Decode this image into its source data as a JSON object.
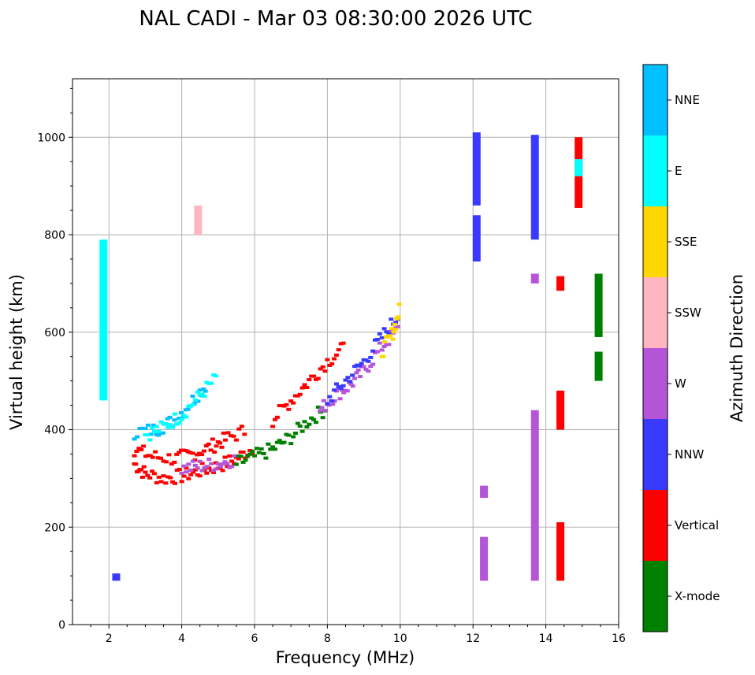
{
  "chart_data": {
    "type": "scatter",
    "title": "NAL CADI - Mar 03 08:30:00 2026 UTC",
    "xlabel": "Frequency (MHz)",
    "ylabel": "Virtual height (km)",
    "xlim": [
      1,
      16
    ],
    "ylim": [
      0,
      1120
    ],
    "xticks": [
      2,
      4,
      6,
      8,
      10,
      12,
      14,
      16
    ],
    "yticks": [
      0,
      200,
      400,
      600,
      800,
      1000
    ],
    "grid": true,
    "colorbar": {
      "label": "Azimuth Direction",
      "categories": [
        {
          "name": "X-mode",
          "color": "#008000"
        },
        {
          "name": "Vertical",
          "color": "#ff0000"
        },
        {
          "name": "NNW",
          "color": "#3a3aff"
        },
        {
          "name": "W",
          "color": "#b455d8"
        },
        {
          "name": "SSW",
          "color": "#ffb6c1"
        },
        {
          "name": "SSE",
          "color": "#ffd700"
        },
        {
          "name": "E",
          "color": "#00ffff"
        },
        {
          "name": "NNE",
          "color": "#00bfff"
        }
      ]
    },
    "segments": [
      {
        "x": 14.4,
        "y0": 685,
        "y1": 715,
        "cat": "Vertical"
      },
      {
        "x": 14.4,
        "y0": 90,
        "y1": 210,
        "cat": "Vertical"
      },
      {
        "x": 14.4,
        "y0": 400,
        "y1": 480,
        "cat": "Vertical"
      },
      {
        "x": 15.45,
        "y0": 590,
        "y1": 720,
        "cat": "X-mode"
      },
      {
        "x": 15.45,
        "y0": 500,
        "y1": 560,
        "cat": "X-mode"
      },
      {
        "x": 12.3,
        "y0": 90,
        "y1": 180,
        "cat": "W"
      },
      {
        "x": 12.3,
        "y0": 260,
        "y1": 285,
        "cat": "W"
      },
      {
        "x": 12.1,
        "y0": 860,
        "y1": 1010,
        "cat": "NNW"
      },
      {
        "x": 12.1,
        "y0": 745,
        "y1": 840,
        "cat": "NNW"
      },
      {
        "x": 13.7,
        "y0": 790,
        "y1": 1005,
        "cat": "NNW"
      },
      {
        "x": 13.7,
        "y0": 700,
        "y1": 720,
        "cat": "W"
      },
      {
        "x": 13.7,
        "y0": 90,
        "y1": 440,
        "cat": "W"
      },
      {
        "x": 14.9,
        "y0": 855,
        "y1": 1000,
        "cat": "Vertical"
      },
      {
        "x": 14.9,
        "y0": 920,
        "y1": 955,
        "cat": "E"
      },
      {
        "x": 4.45,
        "y0": 800,
        "y1": 860,
        "cat": "SSW"
      },
      {
        "x": 1.85,
        "y0": 460,
        "y1": 790,
        "cat": "E"
      },
      {
        "x": 2.2,
        "y0": 90,
        "y1": 105,
        "cat": "NNW"
      }
    ],
    "traces": [
      {
        "cat": "Vertical",
        "points": [
          [
            2.7,
            330
          ],
          [
            3.0,
            310
          ],
          [
            3.5,
            300
          ],
          [
            4.0,
            305
          ],
          [
            4.5,
            315
          ],
          [
            5.0,
            325
          ],
          [
            5.5,
            340
          ],
          [
            6.0,
            365
          ]
        ]
      },
      {
        "cat": "Vertical",
        "points": [
          [
            2.7,
            360
          ],
          [
            3.2,
            345
          ],
          [
            3.8,
            340
          ],
          [
            4.3,
            350
          ],
          [
            4.8,
            365
          ],
          [
            5.2,
            380
          ],
          [
            5.8,
            400
          ]
        ]
      },
      {
        "cat": "NNE",
        "points": [
          [
            2.7,
            395
          ],
          [
            3.3,
            400
          ],
          [
            3.8,
            420
          ],
          [
            4.3,
            460
          ],
          [
            4.7,
            495
          ]
        ]
      },
      {
        "cat": "E",
        "points": [
          [
            3.0,
            390
          ],
          [
            3.5,
            405
          ],
          [
            4.0,
            430
          ],
          [
            4.5,
            470
          ],
          [
            5.0,
            510
          ]
        ]
      },
      {
        "cat": "X-mode",
        "points": [
          [
            5.5,
            330
          ],
          [
            6.0,
            345
          ],
          [
            6.5,
            360
          ],
          [
            7.0,
            385
          ],
          [
            7.5,
            420
          ],
          [
            8.0,
            445
          ]
        ]
      },
      {
        "cat": "W",
        "points": [
          [
            4.0,
            320
          ],
          [
            4.5,
            325
          ],
          [
            5.0,
            330
          ],
          [
            5.5,
            340
          ]
        ]
      },
      {
        "cat": "W",
        "points": [
          [
            7.8,
            440
          ],
          [
            8.2,
            470
          ],
          [
            8.6,
            490
          ],
          [
            9.0,
            520
          ],
          [
            9.5,
            570
          ],
          [
            10.0,
            610
          ]
        ]
      },
      {
        "cat": "NNW",
        "points": [
          [
            8.0,
            460
          ],
          [
            8.5,
            500
          ],
          [
            9.0,
            540
          ],
          [
            9.5,
            590
          ],
          [
            10.0,
            640
          ]
        ]
      },
      {
        "cat": "Vertical",
        "points": [
          [
            6.5,
            420
          ],
          [
            7.0,
            460
          ],
          [
            7.5,
            500
          ],
          [
            8.0,
            540
          ],
          [
            8.5,
            570
          ]
        ]
      },
      {
        "cat": "SSE",
        "points": [
          [
            9.5,
            560
          ],
          [
            9.8,
            600
          ],
          [
            10.0,
            650
          ]
        ]
      }
    ]
  }
}
